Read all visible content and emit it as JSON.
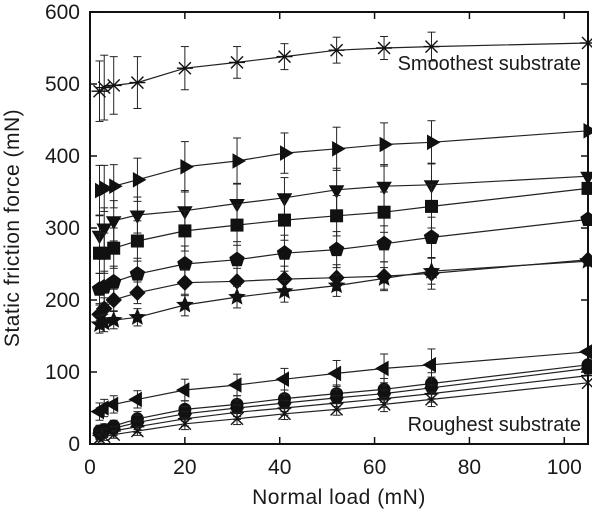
{
  "chart_data": {
    "type": "scatter",
    "xlabel": "Normal load (mN)",
    "ylabel": "Static friction force (mN)",
    "xlim": [
      0,
      105
    ],
    "ylim": [
      0,
      600
    ],
    "xticks": [
      "0",
      "20",
      "40",
      "60",
      "80",
      "100"
    ],
    "yticks": [
      "0",
      "100",
      "200",
      "300",
      "400",
      "500",
      "600"
    ],
    "grid": false,
    "annotations": [
      "Smoothest substrate",
      "Roughest substrate"
    ],
    "series": [
      {
        "marker": "asterisk",
        "x": [
          2,
          3,
          5,
          10,
          20,
          31,
          41,
          52,
          62,
          72,
          105
        ],
        "y": [
          490,
          495,
          498,
          502,
          522,
          530,
          538,
          547,
          550,
          552,
          557
        ],
        "err": [
          42,
          45,
          40,
          36,
          30,
          22,
          18,
          18,
          16,
          20,
          0
        ]
      },
      {
        "marker": "triangle-right",
        "x": [
          2,
          3,
          5,
          10,
          20,
          31,
          41,
          52,
          62,
          72,
          105
        ],
        "y": [
          352,
          355,
          358,
          367,
          385,
          393,
          404,
          410,
          416,
          419,
          435
        ],
        "err": [
          35,
          32,
          30,
          30,
          35,
          32,
          28,
          30,
          30,
          30,
          0
        ]
      },
      {
        "marker": "triangle-down",
        "x": [
          2,
          3,
          5,
          10,
          20,
          31,
          41,
          52,
          62,
          72,
          105
        ],
        "y": [
          290,
          300,
          310,
          318,
          324,
          334,
          342,
          353,
          358,
          360,
          372
        ],
        "err": [
          28,
          28,
          28,
          25,
          28,
          28,
          28,
          30,
          30,
          30,
          0
        ]
      },
      {
        "marker": "square",
        "x": [
          2,
          3,
          5,
          10,
          20,
          31,
          41,
          52,
          62,
          72,
          105
        ],
        "y": [
          265,
          265,
          272,
          282,
          296,
          304,
          311,
          317,
          322,
          330,
          355
        ],
        "err": [
          28,
          28,
          28,
          28,
          28,
          28,
          28,
          28,
          28,
          30,
          0
        ]
      },
      {
        "marker": "pentagon",
        "x": [
          2,
          3,
          5,
          10,
          20,
          31,
          41,
          52,
          62,
          72,
          105
        ],
        "y": [
          215,
          218,
          225,
          236,
          250,
          256,
          265,
          270,
          278,
          287,
          312
        ],
        "err": [
          22,
          22,
          22,
          22,
          25,
          25,
          25,
          25,
          25,
          28,
          0
        ]
      },
      {
        "marker": "diamond",
        "x": [
          2,
          3,
          5,
          10,
          20,
          31,
          41,
          52,
          62,
          72,
          105
        ],
        "y": [
          180,
          188,
          200,
          210,
          224,
          226,
          229,
          231,
          233,
          237,
          256
        ],
        "err": [
          15,
          15,
          15,
          15,
          18,
          18,
          18,
          18,
          20,
          22,
          0
        ]
      },
      {
        "marker": "star",
        "x": [
          2,
          3,
          5,
          10,
          20,
          31,
          41,
          52,
          62,
          72,
          105
        ],
        "y": [
          166,
          168,
          172,
          176,
          193,
          204,
          212,
          220,
          230,
          240,
          254
        ],
        "err": [
          12,
          12,
          12,
          12,
          15,
          15,
          15,
          15,
          15,
          18,
          0
        ]
      },
      {
        "marker": "triangle-left",
        "x": [
          2,
          3,
          5,
          10,
          20,
          31,
          41,
          52,
          62,
          72,
          105
        ],
        "y": [
          45,
          50,
          55,
          62,
          75,
          82,
          90,
          98,
          105,
          110,
          128
        ],
        "err": [
          12,
          12,
          12,
          12,
          15,
          15,
          15,
          18,
          20,
          22,
          0
        ]
      },
      {
        "marker": "circle",
        "x": [
          2,
          3,
          5,
          10,
          20,
          31,
          41,
          52,
          62,
          72,
          105
        ],
        "y": [
          18,
          20,
          25,
          35,
          48,
          55,
          63,
          70,
          76,
          84,
          110
        ],
        "err": [
          8,
          8,
          8,
          10,
          12,
          12,
          12,
          12,
          15,
          15,
          0
        ]
      },
      {
        "marker": "hexagon",
        "x": [
          2,
          3,
          5,
          10,
          20,
          31,
          41,
          52,
          62,
          72,
          105
        ],
        "y": [
          15,
          18,
          22,
          30,
          42,
          50,
          57,
          64,
          70,
          78,
          105
        ],
        "err": [
          8,
          8,
          8,
          10,
          10,
          12,
          12,
          12,
          12,
          15,
          0
        ]
      },
      {
        "marker": "plus",
        "x": [
          2,
          3,
          5,
          10,
          20,
          31,
          41,
          52,
          62,
          72,
          105
        ],
        "y": [
          12,
          15,
          18,
          24,
          35,
          44,
          50,
          57,
          63,
          70,
          95
        ],
        "err": [
          6,
          6,
          6,
          8,
          10,
          10,
          10,
          10,
          12,
          12,
          0
        ]
      },
      {
        "marker": "x",
        "x": [
          2,
          3,
          5,
          10,
          20,
          31,
          41,
          52,
          62,
          72,
          105
        ],
        "y": [
          8,
          10,
          13,
          18,
          28,
          35,
          42,
          48,
          55,
          62,
          85
        ],
        "err": [
          5,
          5,
          5,
          6,
          8,
          8,
          8,
          8,
          10,
          10,
          0
        ]
      }
    ]
  }
}
